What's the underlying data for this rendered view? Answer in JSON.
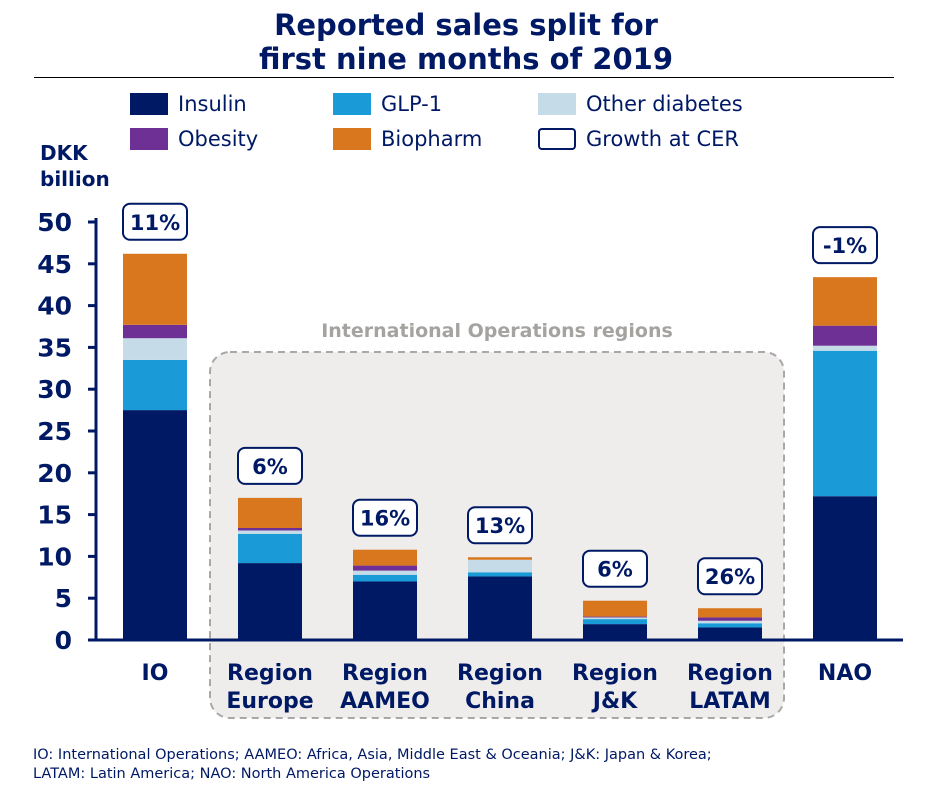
{
  "title_line1": "Reported sales split for",
  "title_line2": "first nine months of 2019",
  "legend": [
    {
      "label": "Insulin",
      "color": "#001965"
    },
    {
      "label": "GLP-1",
      "color": "#1a9bd7"
    },
    {
      "label": "Other diabetes",
      "color": "#c5dce8"
    },
    {
      "label": "Obesity",
      "color": "#6f3096"
    },
    {
      "label": "Biopharm",
      "color": "#d9771e"
    },
    {
      "label": "Growth at CER",
      "color": "#ffffff"
    }
  ],
  "unit_line1": "DKK",
  "unit_line2": "billion",
  "region_box_label": "International Operations regions",
  "footnote_line1": "IO: International Operations; AAMEO: Africa, Asia, Middle East & Oceania; J&K: Japan & Korea;",
  "footnote_line2": "LATAM: Latin America; NAO: North America Operations",
  "chart_data": {
    "type": "bar",
    "stacked": true,
    "ylabel": "DKK billion",
    "ylim": [
      0,
      50
    ],
    "yticks": [
      0,
      5,
      10,
      15,
      20,
      25,
      30,
      35,
      40,
      45,
      50
    ],
    "categories": [
      [
        "IO"
      ],
      [
        "Region",
        "Europe"
      ],
      [
        "Region",
        "AAMEO"
      ],
      [
        "Region",
        "China"
      ],
      [
        "Region",
        "J&K"
      ],
      [
        "Region",
        "LATAM"
      ],
      [
        "NAO"
      ]
    ],
    "series": [
      {
        "name": "Insulin",
        "color": "#001965",
        "values": [
          27.5,
          9.2,
          7.0,
          7.6,
          1.9,
          1.5,
          17.2
        ]
      },
      {
        "name": "GLP-1",
        "color": "#1a9bd7",
        "values": [
          6.0,
          3.5,
          0.8,
          0.5,
          0.6,
          0.5,
          17.4
        ]
      },
      {
        "name": "Other diabetes",
        "color": "#c5dce8",
        "values": [
          2.6,
          0.4,
          0.5,
          1.5,
          0.2,
          0.3,
          0.6
        ]
      },
      {
        "name": "Obesity",
        "color": "#6f3096",
        "values": [
          1.6,
          0.3,
          0.6,
          0.0,
          0.1,
          0.4,
          2.4
        ]
      },
      {
        "name": "Biopharm",
        "color": "#d9771e",
        "values": [
          8.5,
          3.6,
          1.9,
          0.3,
          1.9,
          1.1,
          5.8
        ]
      }
    ],
    "growth_at_cer": [
      "11%",
      "6%",
      "16%",
      "13%",
      "6%",
      "26%",
      "-1%"
    ],
    "grid": false,
    "legend_position": "top"
  }
}
